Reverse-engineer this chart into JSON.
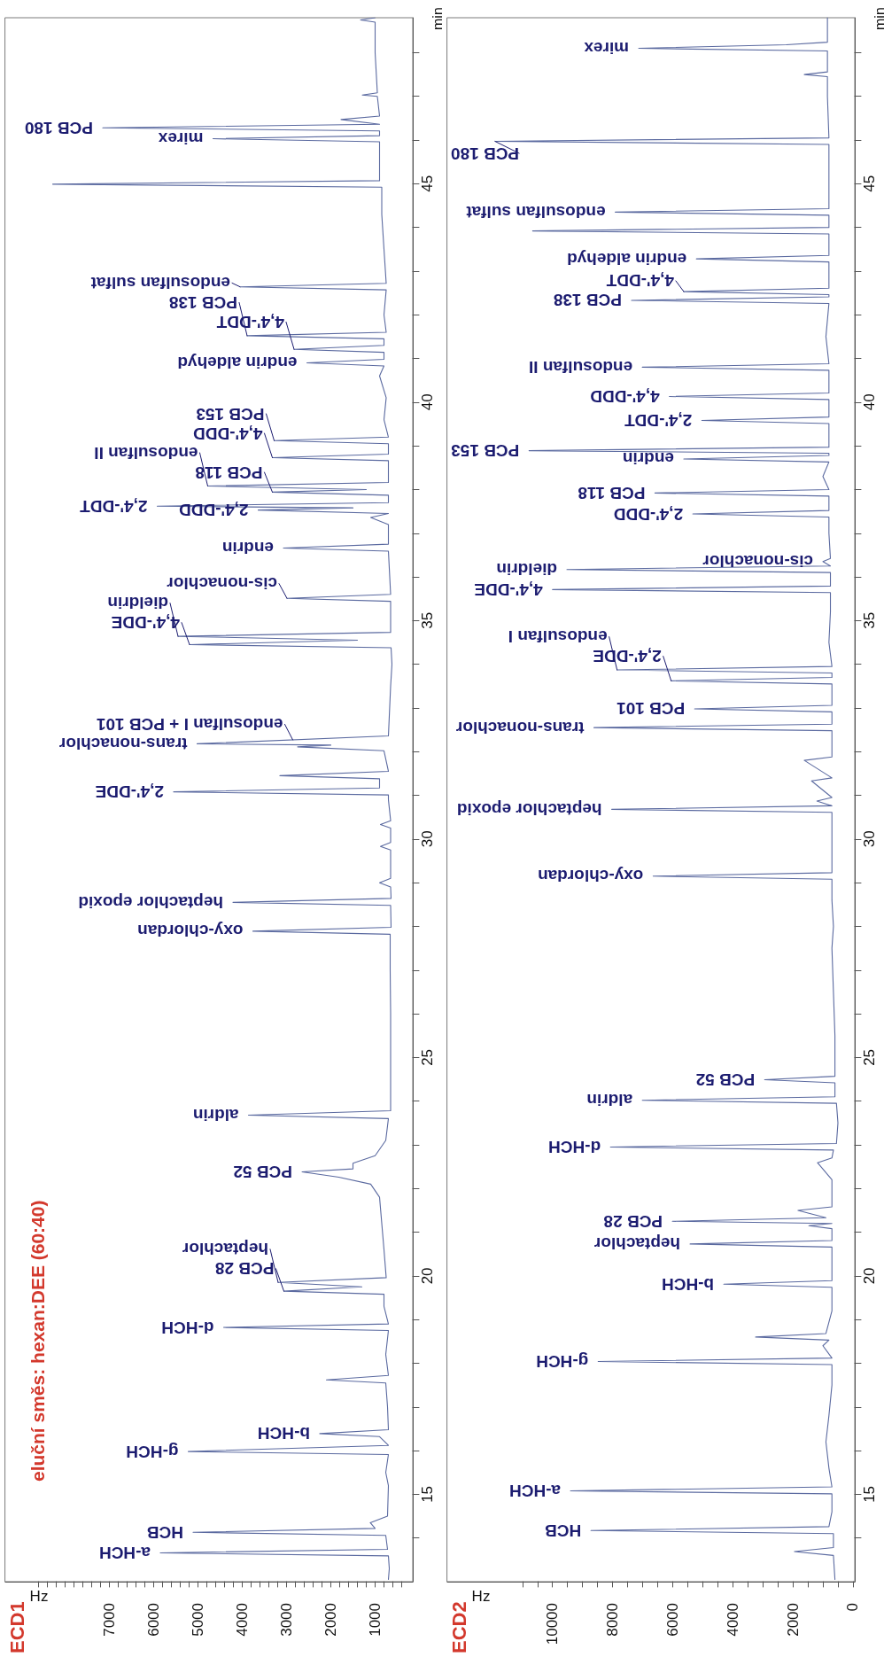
{
  "chart_data": [
    {
      "type": "line",
      "title": "ECD1",
      "subtitle": "eluční směs: hexan:DEE (60:40)",
      "xlabel": "Hz",
      "ylabel": "min",
      "color": "#5b6aa0",
      "marker": "none",
      "grid": false,
      "ylim": [
        13,
        48.8
      ],
      "xlim": [
        9350,
        150
      ],
      "yticks": [
        {
          "value": 14,
          "label": null
        },
        15,
        {
          "value": 16,
          "label": null
        },
        {
          "value": 17,
          "label": null
        },
        {
          "value": 18,
          "label": null
        },
        {
          "value": 19,
          "label": null
        },
        20,
        {
          "value": 21,
          "label": null
        },
        {
          "value": 22,
          "label": null
        },
        {
          "value": 23,
          "label": null
        },
        {
          "value": 24,
          "label": null
        },
        25,
        {
          "value": 26,
          "label": null
        },
        {
          "value": 27,
          "label": null
        },
        {
          "value": 28,
          "label": null
        },
        {
          "value": 29,
          "label": null
        },
        30,
        {
          "value": 31,
          "label": null
        },
        {
          "value": 32,
          "label": null
        },
        {
          "value": 33,
          "label": null
        },
        {
          "value": 34,
          "label": null
        },
        35,
        {
          "value": 36,
          "label": null
        },
        {
          "value": 37,
          "label": null
        },
        {
          "value": 38,
          "label": null
        },
        {
          "value": 39,
          "label": null
        },
        40,
        {
          "value": 41,
          "label": null
        },
        {
          "value": 42,
          "label": null
        },
        {
          "value": 43,
          "label": null
        },
        {
          "value": 44,
          "label": null
        },
        45,
        {
          "value": 46,
          "label": null
        },
        {
          "value": 47,
          "label": null
        },
        {
          "value": 48,
          "label": null
        }
      ],
      "xticks": [
        {
          "value": 400,
          "label": null
        },
        {
          "value": 600,
          "label": null
        },
        {
          "value": 800,
          "label": null
        },
        1000,
        {
          "value": 1200,
          "label": null
        },
        {
          "value": 1400,
          "label": null
        },
        {
          "value": 1600,
          "label": null
        },
        {
          "value": 1800,
          "label": null
        },
        2000,
        {
          "value": 2200,
          "label": null
        },
        {
          "value": 2400,
          "label": null
        },
        {
          "value": 2600,
          "label": null
        },
        {
          "value": 2800,
          "label": null
        },
        3000,
        {
          "value": 3200,
          "label": null
        },
        {
          "value": 3400,
          "label": null
        },
        {
          "value": 3600,
          "label": null
        },
        {
          "value": 3800,
          "label": null
        },
        4000,
        {
          "value": 4200,
          "label": null
        },
        {
          "value": 4400,
          "label": null
        },
        {
          "value": 4600,
          "label": null
        },
        {
          "value": 4800,
          "label": null
        },
        5000,
        {
          "value": 5200,
          "label": null
        },
        {
          "value": 5400,
          "label": null
        },
        {
          "value": 5600,
          "label": null
        },
        {
          "value": 5800,
          "label": null
        },
        6000,
        {
          "value": 6200,
          "label": null
        },
        {
          "value": 6400,
          "label": null
        },
        {
          "value": 6600,
          "label": null
        },
        {
          "value": 6800,
          "label": null
        },
        7000,
        {
          "value": 7200,
          "label": null
        },
        {
          "value": 7400,
          "label": null
        },
        {
          "value": 7600,
          "label": null
        },
        {
          "value": 7800,
          "label": null
        },
        {
          "value": 8000,
          "label": null
        },
        {
          "value": 8200,
          "label": null
        },
        {
          "value": 8400,
          "label": null
        },
        {
          "value": 8600,
          "label": null
        }
      ],
      "values": [
        13.05,
        13.3,
        13.59,
        13.66,
        13.74,
        14.06,
        14.13,
        14.22,
        14.35,
        14.5,
        15.2,
        15.5,
        15.91,
        15.98,
        16.12,
        16.32,
        16.39,
        16.48,
        17.0,
        17.55,
        17.62,
        17.72,
        18.2,
        18.75,
        18.82,
        18.9,
        19.3,
        19.58,
        19.65,
        19.75,
        19.85,
        19.96,
        20.6,
        21.2,
        21.8,
        22.1,
        22.26,
        22.38,
        22.45,
        22.58,
        22.75,
        23.1,
        23.6,
        23.68,
        23.78,
        25,
        26,
        27,
        27.82,
        27.89,
        27.98,
        28.48,
        28.55,
        28.64,
        28.9,
        29.0,
        29.1,
        29.75,
        29.83,
        29.92,
        30.25,
        30.33,
        30.42,
        30.9,
        31.01,
        31.08,
        31.17,
        31.38,
        31.45,
        31.55,
        32.02,
        32.11,
        32.15,
        32.18,
        32.36,
        33.5,
        34.0,
        34.38,
        34.45,
        34.55,
        34.64,
        34.73,
        35.44,
        35.51,
        35.6,
        36.59,
        36.66,
        36.75,
        37.2,
        37.36,
        37.45,
        37.53,
        37.58,
        37.62,
        37.7,
        37.87,
        37.94,
        38.0,
        38.08,
        38.16,
        38.66,
        38.73,
        38.81,
        39.05,
        39.12,
        39.2,
        39.6,
        40.1,
        40.6,
        40.83,
        40.9,
        40.98,
        41.14,
        41.21,
        41.3,
        41.45,
        41.52,
        41.6,
        42.0,
        42.57,
        42.64,
        42.72,
        43.5,
        44.3,
        44.92,
        44.99,
        45.07,
        45.96,
        46.03,
        46.1,
        46.21,
        46.28,
        46.36,
        46.47,
        46.55,
        47.0,
        47.03,
        47.08,
        48.0,
        48.7,
        48.75,
        48.8
      ],
      "x": [
        700,
        680,
        700,
        5850,
        720,
        760,
        5110,
        1000,
        1110,
        720,
        700,
        760,
        700,
        5220,
        700,
        900,
        2250,
        700,
        720,
        760,
        2100,
        700,
        760,
        700,
        4420,
        700,
        800,
        800,
        3060,
        1300,
        3190,
        750,
        800,
        850,
        900,
        1100,
        1820,
        2650,
        1500,
        1500,
        1000,
        760,
        700,
        3860,
        650,
        650,
        650,
        660,
        660,
        3760,
        640,
        650,
        4210,
        640,
        650,
        900,
        650,
        650,
        880,
        650,
        650,
        880,
        650,
        700,
        700,
        5550,
        900,
        900,
        3150,
        700,
        800,
        2750,
        2000,
        5020,
        700,
        650,
        620,
        640,
        5190,
        1400,
        5450,
        650,
        650,
        2990,
        650,
        700,
        3070,
        700,
        700,
        1100,
        700,
        3640,
        1500,
        5920,
        700,
        700,
        3320,
        1200,
        4780,
        700,
        700,
        3320,
        700,
        700,
        3280,
        700,
        800,
        750,
        900,
        800,
        2540,
        800,
        800,
        2830,
        800,
        800,
        3890,
        750,
        800,
        750,
        4050,
        750,
        800,
        850,
        850,
        8280,
        900,
        900,
        4660,
        900,
        900,
        7150,
        900,
        1770,
        900,
        950,
        1290,
        950,
        1000,
        1000,
        1330,
        1000
      ],
      "annotations": [
        {
          "text": "a-HCH",
          "y": 13.66,
          "x": 5850
        },
        {
          "text": "HCB",
          "y": 14.13,
          "x": 5110
        },
        {
          "text": "g-HCH",
          "y": 15.98,
          "x": 5220
        },
        {
          "text": "b-HCH",
          "y": 16.39,
          "x": 2250
        },
        {
          "text": "d-HCH",
          "y": 18.82,
          "x": 4420
        },
        {
          "text": "PCB 28",
          "y": 19.65,
          "x": 3060
        },
        {
          "text": "heptachlor",
          "y": 19.85,
          "x": 3190
        },
        {
          "text": "PCB 52",
          "y": 22.38,
          "x": 2650
        },
        {
          "text": "aldrin",
          "y": 23.68,
          "x": 3860
        },
        {
          "text": "oxy-chlordan",
          "y": 27.89,
          "x": 3760
        },
        {
          "text": "heptachlor epoxid",
          "y": 28.55,
          "x": 4210
        },
        {
          "text": "2,4'-DDE",
          "y": 31.08,
          "x": 5550
        },
        {
          "text": "trans-nonachlor",
          "y": 32.18,
          "x": 5020
        },
        {
          "text": "endosulfan I + PCB 101",
          "y": 32.27,
          "x": 2860
        },
        {
          "text": "4,4'-DDE",
          "y": 34.45,
          "x": 5190
        },
        {
          "text": "dieldrin",
          "y": 34.64,
          "x": 5450
        },
        {
          "text": "cis-nonachlor",
          "y": 35.51,
          "x": 2990
        },
        {
          "text": "endrin",
          "y": 36.66,
          "x": 3070
        },
        {
          "text": "2,4'-DDD",
          "y": 37.53,
          "x": 3640
        },
        {
          "text": "2,4'-DDT",
          "y": 37.62,
          "x": 5920
        },
        {
          "text": "PCB 118",
          "y": 37.94,
          "x": 3320
        },
        {
          "text": "endosulfan II",
          "y": 38.08,
          "x": 4780
        },
        {
          "text": "4,4'-DDD",
          "y": 38.73,
          "x": 3320
        },
        {
          "text": "PCB 153",
          "y": 39.12,
          "x": 3280
        },
        {
          "text": "endrin aldehyd",
          "y": 40.9,
          "x": 2540
        },
        {
          "text": "4,4'-DDT",
          "y": 41.21,
          "x": 2830
        },
        {
          "text": "PCB 138",
          "y": 41.52,
          "x": 3890
        },
        {
          "text": "endosulfan sulfat",
          "y": 42.64,
          "x": 4050
        },
        {
          "text": "mirex",
          "y": 46.03,
          "x": 4660
        },
        {
          "text": "PCB 180",
          "y": 46.28,
          "x": 7150
        }
      ]
    },
    {
      "type": "line",
      "title": "ECD2",
      "xlabel": "Hz",
      "ylabel": "min",
      "color": "#5b6aa0",
      "marker": "none",
      "grid": false,
      "ylim": [
        13,
        48.8
      ],
      "xlim": [
        13500,
        -60
      ],
      "yticks": [
        {
          "value": 14,
          "label": null
        },
        15,
        {
          "value": 16,
          "label": null
        },
        {
          "value": 17,
          "label": null
        },
        {
          "value": 18,
          "label": null
        },
        {
          "value": 19,
          "label": null
        },
        20,
        {
          "value": 21,
          "label": null
        },
        {
          "value": 22,
          "label": null
        },
        {
          "value": 23,
          "label": null
        },
        {
          "value": 24,
          "label": null
        },
        25,
        {
          "value": 26,
          "label": null
        },
        {
          "value": 27,
          "label": null
        },
        {
          "value": 28,
          "label": null
        },
        {
          "value": 29,
          "label": null
        },
        30,
        {
          "value": 31,
          "label": null
        },
        {
          "value": 32,
          "label": null
        },
        {
          "value": 33,
          "label": null
        },
        {
          "value": 34,
          "label": null
        },
        35,
        {
          "value": 36,
          "label": null
        },
        {
          "value": 37,
          "label": null
        },
        {
          "value": 38,
          "label": null
        },
        {
          "value": 39,
          "label": null
        },
        40,
        {
          "value": 41,
          "label": null
        },
        {
          "value": 42,
          "label": null
        },
        {
          "value": 43,
          "label": null
        },
        {
          "value": 44,
          "label": null
        },
        45,
        {
          "value": 46,
          "label": null
        },
        {
          "value": 47,
          "label": null
        },
        {
          "value": 48,
          "label": null
        }
      ],
      "xticks": [
        0,
        {
          "value": 500,
          "label": null
        },
        {
          "value": 1000,
          "label": null
        },
        {
          "value": 1500,
          "label": null
        },
        2000,
        {
          "value": 2500,
          "label": null
        },
        {
          "value": 3000,
          "label": null
        },
        {
          "value": 3500,
          "label": null
        },
        4000,
        {
          "value": 4500,
          "label": null
        },
        {
          "value": 5000,
          "label": null
        },
        {
          "value": 5500,
          "label": null
        },
        6000,
        {
          "value": 6500,
          "label": null
        },
        {
          "value": 7000,
          "label": null
        },
        {
          "value": 7500,
          "label": null
        },
        8000,
        {
          "value": 8500,
          "label": null
        },
        {
          "value": 9000,
          "label": null
        },
        {
          "value": 9500,
          "label": null
        },
        10000,
        {
          "value": 10500,
          "label": null
        },
        {
          "value": 11000,
          "label": null
        }
      ],
      "values": [
        13.05,
        13.6,
        13.69,
        13.78,
        14.1,
        14.17,
        14.26,
        14.6,
        15.01,
        15.08,
        15.17,
        15.6,
        16.2,
        16.8,
        17.5,
        17.97,
        18.04,
        18.12,
        18.4,
        18.53,
        18.6,
        18.68,
        19.2,
        19.74,
        19.81,
        19.89,
        20.66,
        20.73,
        20.81,
        21.08,
        21.15,
        21.2,
        21.25,
        21.33,
        21.5,
        21.58,
        22.2,
        22.59,
        22.7,
        22.88,
        22.95,
        23.03,
        23.5,
        23.95,
        24.02,
        24.1,
        24.42,
        24.49,
        24.57,
        25.5,
        26.5,
        27.5,
        28.0,
        28.6,
        29.08,
        29.15,
        29.23,
        30.0,
        30.61,
        30.68,
        30.76,
        30.87,
        30.95,
        31.33,
        31.4,
        31.8,
        31.88,
        32.48,
        32.55,
        32.63,
        32.91,
        32.98,
        33.06,
        33.55,
        33.62,
        33.7,
        33.8,
        33.87,
        33.95,
        34.5,
        35.2,
        35.64,
        35.71,
        35.79,
        36.1,
        36.17,
        36.25,
        36.35,
        36.42,
        37.0,
        37.37,
        37.44,
        37.52,
        37.85,
        37.92,
        38.0,
        38.3,
        38.63,
        38.7,
        38.78,
        38.83,
        38.89,
        38.97,
        39.51,
        39.58,
        39.66,
        40.06,
        40.13,
        40.21,
        40.73,
        40.8,
        40.88,
        41.5,
        42.26,
        42.33,
        42.41,
        42.46,
        42.53,
        42.61,
        43.21,
        43.28,
        43.36,
        43.85,
        43.92,
        44.0,
        44.28,
        44.35,
        44.43,
        45.0,
        45.9,
        45.97,
        46.05,
        47.0,
        47.45,
        47.5,
        47.56,
        48.04,
        48.1,
        48.18,
        48.24,
        48.8
      ],
      "x": [
        600,
        650,
        1950,
        650,
        650,
        8720,
        800,
        700,
        700,
        9400,
        700,
        800,
        900,
        800,
        700,
        700,
        8480,
        700,
        1000,
        800,
        3240,
        900,
        700,
        700,
        4300,
        700,
        700,
        5420,
        700,
        700,
        1470,
        700,
        6010,
        900,
        1830,
        700,
        700,
        1180,
        700,
        650,
        8070,
        550,
        500,
        550,
        7010,
        600,
        600,
        2940,
        600,
        600,
        650,
        700,
        650,
        700,
        700,
        6650,
        700,
        700,
        700,
        8030,
        700,
        1200,
        700,
        1380,
        700,
        1620,
        700,
        700,
        8620,
        700,
        700,
        5270,
        700,
        700,
        6050,
        700,
        700,
        7850,
        700,
        800,
        750,
        750,
        10000,
        750,
        750,
        9520,
        750,
        1000,
        750,
        800,
        800,
        5330,
        800,
        800,
        6590,
        800,
        1000,
        800,
        5630,
        800,
        800,
        10780,
        800,
        800,
        5030,
        800,
        800,
        6110,
        800,
        800,
        7010,
        800,
        900,
        800,
        7370,
        800,
        800,
        5630,
        800,
        800,
        5210,
        800,
        800,
        10660,
        800,
        800,
        7910,
        800,
        800,
        800,
        11910,
        800,
        850,
        850,
        1620,
        850,
        850,
        7130,
        2220,
        850,
        850
      ],
      "annotations": [
        {
          "text": "HCB",
          "y": 14.17,
          "x": 8720
        },
        {
          "text": "a-HCH",
          "y": 15.08,
          "x": 9400
        },
        {
          "text": "g-HCH",
          "y": 18.04,
          "x": 8480
        },
        {
          "text": "b-HCH",
          "y": 19.81,
          "x": 4300
        },
        {
          "text": "heptachlor",
          "y": 20.73,
          "x": 5420
        },
        {
          "text": "PCB 28",
          "y": 21.25,
          "x": 6010
        },
        {
          "text": "d-HCH",
          "y": 22.95,
          "x": 8070
        },
        {
          "text": "aldrin",
          "y": 24.02,
          "x": 7010
        },
        {
          "text": "PCB 52",
          "y": 24.49,
          "x": 2940
        },
        {
          "text": "oxy-chlordan",
          "y": 29.15,
          "x": 6650
        },
        {
          "text": "heptachlor epoxid",
          "y": 30.68,
          "x": 8030
        },
        {
          "text": "trans-nonachlor",
          "y": 32.55,
          "x": 8620
        },
        {
          "text": "PCB 101",
          "y": 32.98,
          "x": 5270
        },
        {
          "text": "2,4'-DDE",
          "y": 33.62,
          "x": 6050
        },
        {
          "text": "endosulfan I",
          "y": 33.87,
          "x": 7850
        },
        {
          "text": "4,4'-DDE",
          "y": 35.71,
          "x": 10000
        },
        {
          "text": "dieldrin",
          "y": 36.17,
          "x": 9520
        },
        {
          "text": "cis-nonachlor",
          "y": 36.35,
          "x": 1000
        },
        {
          "text": "2,4'-DDD",
          "y": 37.44,
          "x": 5330
        },
        {
          "text": "PCB 118",
          "y": 37.92,
          "x": 6590
        },
        {
          "text": "endrin",
          "y": 38.7,
          "x": 5630
        },
        {
          "text": "PCB 153",
          "y": 38.89,
          "x": 10780
        },
        {
          "text": "2,4'-DDT",
          "y": 39.58,
          "x": 5030
        },
        {
          "text": "4,4'-DDD",
          "y": 40.13,
          "x": 6110
        },
        {
          "text": "endosulfan II",
          "y": 40.8,
          "x": 7010
        },
        {
          "text": "PCB 138",
          "y": 42.33,
          "x": 7370
        },
        {
          "text": "4,4'-DDT",
          "y": 42.53,
          "x": 5630
        },
        {
          "text": "endrin aldehyd",
          "y": 43.28,
          "x": 5210
        },
        {
          "text": "endosulfan sulfat",
          "y": 44.35,
          "x": 7910
        },
        {
          "text": "PCB 180",
          "y": 45.97,
          "x": 11910
        },
        {
          "text": "mirex",
          "y": 48.1,
          "x": 7130
        }
      ]
    }
  ]
}
